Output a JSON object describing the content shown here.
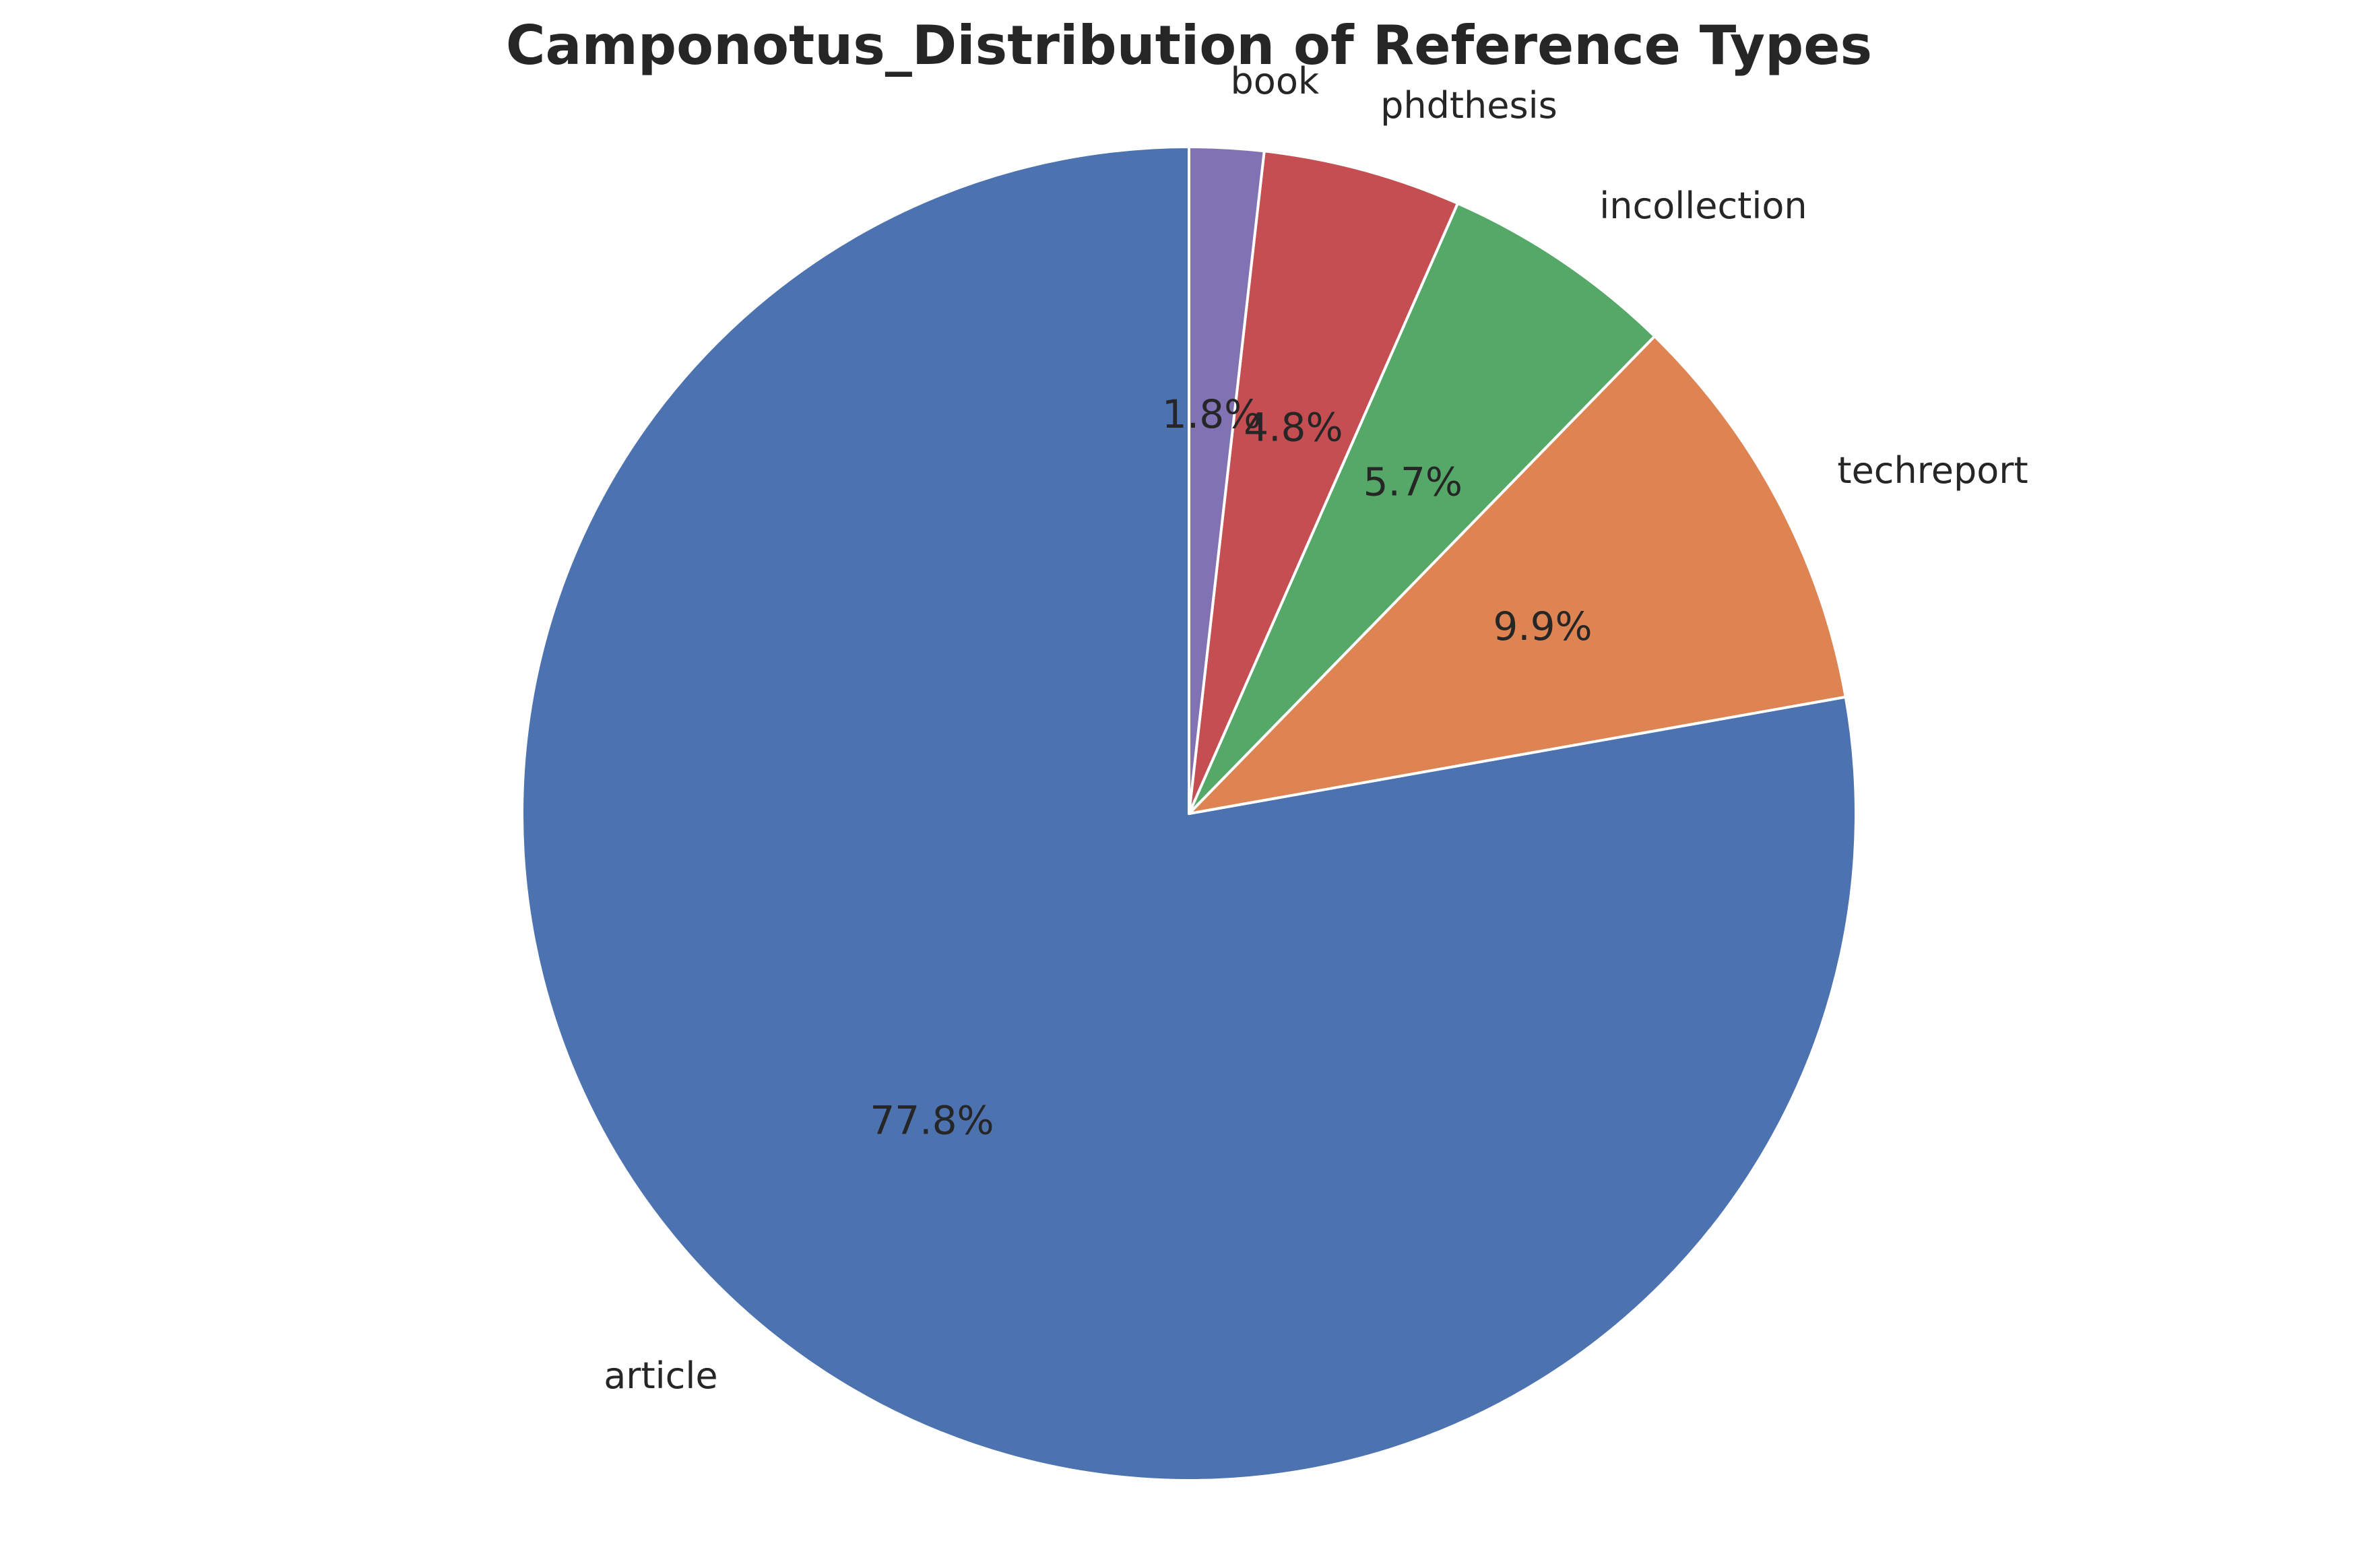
{
  "chart_data": {
    "type": "pie",
    "title": "Camponotus_Distribution of Reference Types",
    "start_angle_deg": 90,
    "direction": "counterclockwise",
    "slices": [
      {
        "label": "article",
        "value": 77.8,
        "pct_text": "77.8%",
        "color": "#4c72b0"
      },
      {
        "label": "techreport",
        "value": 9.9,
        "pct_text": "9.9%",
        "color": "#dd8452"
      },
      {
        "label": "incollection",
        "value": 5.7,
        "pct_text": "5.7%",
        "color": "#55a868"
      },
      {
        "label": "phdthesis",
        "value": 4.8,
        "pct_text": "4.8%",
        "color": "#c44e52"
      },
      {
        "label": "book",
        "value": 1.8,
        "pct_text": "1.8%",
        "color": "#8172b3"
      }
    ]
  }
}
